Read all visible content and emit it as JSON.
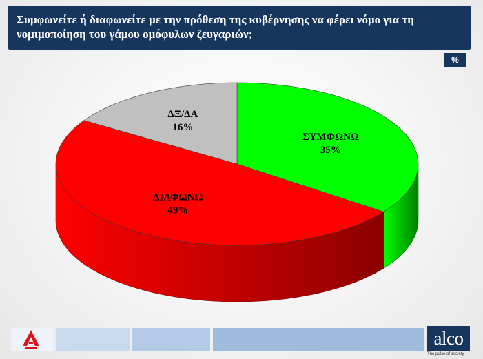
{
  "title": "Συμφωνείτε ή διαφωνείτε με την πρόθεση της κυβέρνησης να φέρει νόμο για τη νομιμοποίηση του γάμου ομόφυλων ζευγαριών;",
  "unit_badge": "%",
  "footer": {
    "brand": "alco",
    "tagline": "The pulse of society",
    "left_logo_icon": "alpha-news-logo"
  },
  "colors": {
    "title_bar": "#17365d",
    "agree": "#00ff00",
    "disagree": "#ff0000",
    "dk": "#c0c0c0"
  },
  "chart_data": {
    "type": "pie",
    "style": "3d",
    "slices": [
      {
        "label": "ΣΥΜΦΩΝΩ",
        "value": 35,
        "value_label": "35%",
        "color": "#00ff00",
        "side_color": "#007f00"
      },
      {
        "label": "ΔΙΑΦΩΝΩ",
        "value": 49,
        "value_label": "49%",
        "color": "#ff0000",
        "side_color": "#8b0000"
      },
      {
        "label": "ΔΞ/ΔΑ",
        "value": 16,
        "value_label": "16%",
        "color": "#c0c0c0",
        "side_color": "#7a7a7a"
      }
    ]
  }
}
